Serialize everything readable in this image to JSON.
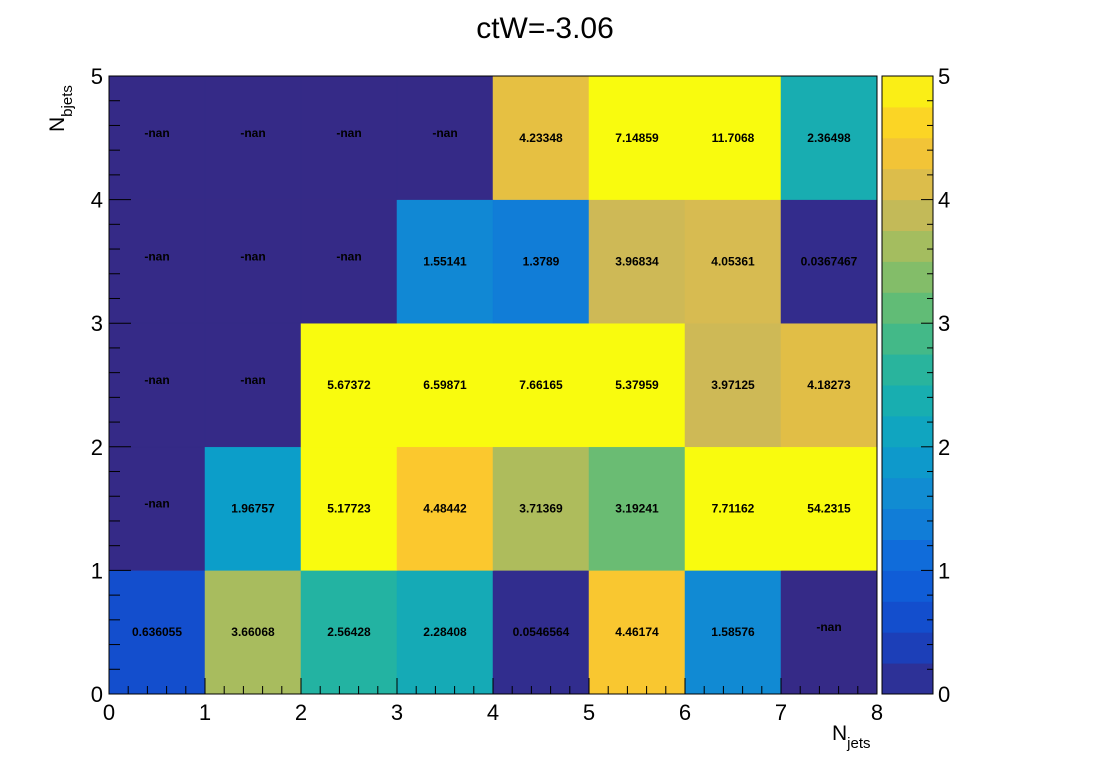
{
  "chart_data": {
    "type": "heatmap",
    "title": "ctW=-3.06",
    "xlabel": {
      "main": "N",
      "sub": "jets"
    },
    "ylabel": {
      "main": "N",
      "sub": "bjets"
    },
    "x_ticks": [
      "0",
      "1",
      "2",
      "3",
      "4",
      "5",
      "6",
      "7",
      "8"
    ],
    "y_ticks": [
      "0",
      "1",
      "2",
      "3",
      "4",
      "5"
    ],
    "z_ticks": [
      "0",
      "1",
      "2",
      "3",
      "4",
      "5"
    ],
    "xlim": [
      0,
      8
    ],
    "ylim": [
      0,
      5
    ],
    "zlim": [
      0,
      5
    ],
    "colormap": "parula",
    "nan_color": "#352a87",
    "rows": [
      {
        "y": 0,
        "labels": [
          "0.636055",
          "3.66068",
          "2.56428",
          "2.28408",
          "0.0546564",
          "4.46174",
          "1.58576",
          "-nan"
        ]
      },
      {
        "y": 1,
        "labels": [
          "-nan",
          "1.96757",
          "5.17723",
          "4.48442",
          "3.71369",
          "3.19241",
          "7.71162",
          "54.2315"
        ]
      },
      {
        "y": 2,
        "labels": [
          "-nan",
          "-nan",
          "5.67372",
          "6.59871",
          "7.66165",
          "5.37959",
          "3.97125",
          "4.18273"
        ]
      },
      {
        "y": 3,
        "labels": [
          "-nan",
          "-nan",
          "-nan",
          "1.55141",
          "1.3789",
          "3.96834",
          "4.05361",
          "0.0367467"
        ]
      },
      {
        "y": 4,
        "labels": [
          "-nan",
          "-nan",
          "-nan",
          "-nan",
          "4.23348",
          "7.14859",
          "11.7068",
          "2.36498"
        ]
      }
    ]
  }
}
